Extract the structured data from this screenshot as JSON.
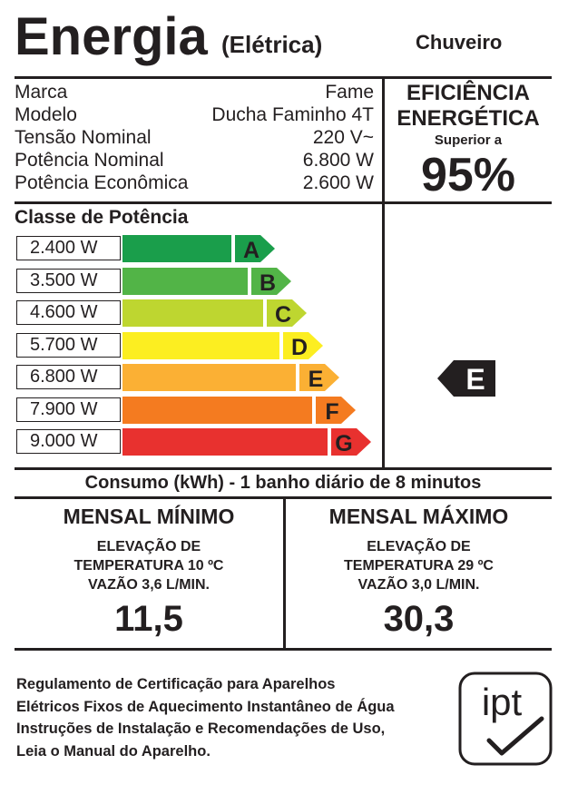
{
  "header": {
    "title": "Energia",
    "subtitle": "(Elétrica)",
    "product": "Chuveiro"
  },
  "specs": [
    {
      "label": "Marca",
      "value": "Fame"
    },
    {
      "label": "Modelo",
      "value": "Ducha Faminho 4T"
    },
    {
      "label": "Tensão Nominal",
      "value": "220 V~"
    },
    {
      "label": "Potência Nominal",
      "value": "6.800 W"
    },
    {
      "label": "Potência Econômica",
      "value": "2.600 W"
    }
  ],
  "efficiency": {
    "line1": "EFICIÊNCIA",
    "line2": "ENERGÉTICA",
    "qualifier": "Superior a",
    "percent": "95%"
  },
  "classes": {
    "title": "Classe de Potência",
    "rows": [
      {
        "power": "2.400 W",
        "letter": "A",
        "color": "#1a9e4b"
      },
      {
        "power": "3.500 W",
        "letter": "B",
        "color": "#52b447"
      },
      {
        "power": "4.600 W",
        "letter": "C",
        "color": "#bed630"
      },
      {
        "power": "5.700 W",
        "letter": "D",
        "color": "#fcee21"
      },
      {
        "power": "6.800 W",
        "letter": "E",
        "color": "#fbb034"
      },
      {
        "power": "7.900 W",
        "letter": "F",
        "color": "#f47b20"
      },
      {
        "power": "9.000 W",
        "letter": "G",
        "color": "#e8312f"
      }
    ],
    "selected": "E"
  },
  "consumo": {
    "title": "Consumo (kWh) - 1 banho diário de 8 minutos",
    "min": {
      "heading": "MENSAL MÍNIMO",
      "line1": "ELEVAÇÃO DE",
      "line2": "TEMPERATURA 10 ºC",
      "line3": "VAZÃO 3,6 L/MIN.",
      "value": "11,5"
    },
    "max": {
      "heading": "MENSAL MÁXIMO",
      "line1": "ELEVAÇÃO DE",
      "line2": "TEMPERATURA 29 ºC",
      "line3": "VAZÃO 3,0 L/MIN.",
      "value": "30,3"
    }
  },
  "footer": {
    "lines": [
      "Regulamento de Certificação para Aparelhos",
      "Elétricos Fixos de Aquecimento Instantâneo de Água",
      "Instruções de Instalação e Recomendações de Uso,",
      "Leia o Manual do Aparelho."
    ],
    "logo_text": "ipt"
  }
}
